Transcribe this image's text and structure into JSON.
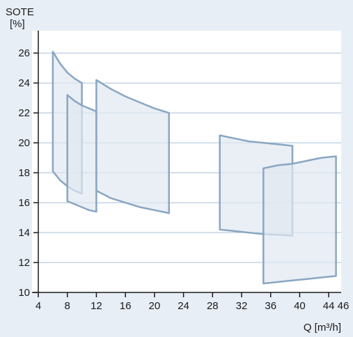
{
  "chart_data": {
    "type": "area",
    "ylabel_line1": "SOTE",
    "ylabel_line2": "[%]",
    "xlabel": "Q [m³/h]",
    "xlim": [
      4,
      46
    ],
    "ylim": [
      10,
      27.5
    ],
    "x_ticks": [
      4,
      8,
      12,
      16,
      20,
      24,
      28,
      32,
      36,
      40,
      44
    ],
    "x_ticks_labeled": [
      4,
      8,
      12,
      16,
      20,
      24,
      28,
      32,
      36,
      40,
      44,
      46
    ],
    "y_ticks": [
      10,
      12,
      14,
      16,
      18,
      20,
      22,
      24,
      26
    ],
    "grid": "horizontal",
    "colors": {
      "background": "#e8eef5",
      "plot_area": "#ffffff",
      "gridline": "#a9bfd6",
      "region_fill": "#dfe8f1",
      "region_stroke": "#8aa6c2",
      "axis": "#1a1a1a"
    },
    "regions": [
      {
        "top": [
          [
            6,
            26.1
          ],
          [
            7,
            25.3
          ],
          [
            8,
            24.7
          ],
          [
            9,
            24.3
          ],
          [
            10,
            24.0
          ]
        ],
        "bottom": [
          [
            6,
            18.1
          ],
          [
            7,
            17.5
          ],
          [
            8,
            17.1
          ],
          [
            9,
            16.8
          ],
          [
            10,
            16.6
          ]
        ]
      },
      {
        "top": [
          [
            8,
            23.2
          ],
          [
            9,
            22.8
          ],
          [
            10,
            22.5
          ],
          [
            11,
            22.3
          ],
          [
            12,
            22.1
          ]
        ],
        "bottom": [
          [
            8,
            16.1
          ],
          [
            9,
            15.9
          ],
          [
            10,
            15.7
          ],
          [
            11,
            15.5
          ],
          [
            12,
            15.4
          ]
        ]
      },
      {
        "top": [
          [
            12,
            24.2
          ],
          [
            14,
            23.6
          ],
          [
            16,
            23.1
          ],
          [
            18,
            22.7
          ],
          [
            20,
            22.3
          ],
          [
            22,
            22.0
          ]
        ],
        "bottom": [
          [
            12,
            16.8
          ],
          [
            14,
            16.3
          ],
          [
            16,
            16.0
          ],
          [
            18,
            15.7
          ],
          [
            20,
            15.5
          ],
          [
            22,
            15.3
          ]
        ]
      },
      {
        "top": [
          [
            29,
            20.5
          ],
          [
            31,
            20.3
          ],
          [
            33,
            20.1
          ],
          [
            35,
            20.0
          ],
          [
            37,
            19.9
          ],
          [
            39,
            19.8
          ]
        ],
        "bottom": [
          [
            29,
            14.2
          ],
          [
            31,
            14.1
          ],
          [
            33,
            14.0
          ],
          [
            35,
            13.9
          ],
          [
            37,
            13.85
          ],
          [
            39,
            13.8
          ]
        ]
      },
      {
        "top": [
          [
            35,
            18.3
          ],
          [
            37,
            18.5
          ],
          [
            39,
            18.6
          ],
          [
            41,
            18.8
          ],
          [
            43,
            19.0
          ],
          [
            45,
            19.1
          ]
        ],
        "bottom": [
          [
            35,
            10.6
          ],
          [
            37,
            10.7
          ],
          [
            39,
            10.8
          ],
          [
            41,
            10.9
          ],
          [
            43,
            11.0
          ],
          [
            45,
            11.1
          ]
        ]
      }
    ]
  }
}
